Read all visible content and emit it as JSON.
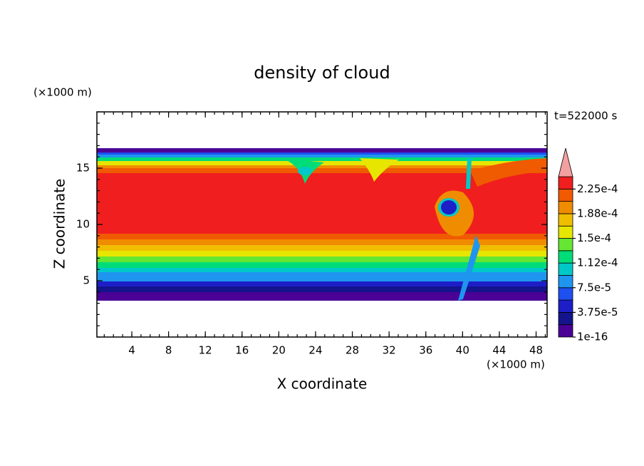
{
  "chart_data": {
    "type": "contour",
    "title": "density of cloud",
    "xlabel": "X coordinate",
    "ylabel": "Z coordinate",
    "x_unit": "(×1000 m)",
    "y_unit": "(×1000 m)",
    "annotation": "t=522000 s",
    "xlim": [
      0.2,
      49.2
    ],
    "ylim": [
      0,
      20
    ],
    "xticks": [
      4,
      8,
      12,
      16,
      20,
      24,
      28,
      32,
      36,
      40,
      44,
      48
    ],
    "yticks": [
      5,
      10,
      15
    ],
    "minor_step": 1,
    "colorbar": {
      "clim": [
        1e-16,
        0.00024375
      ],
      "ticks": [
        {
          "value": 1e-16,
          "label": "1e-16"
        },
        {
          "value": 3.75e-05,
          "label": "3.75e-5"
        },
        {
          "value": 7.5e-05,
          "label": "7.5e-5"
        },
        {
          "value": 0.0001125,
          "label": "1.12e-4"
        },
        {
          "value": 0.00015,
          "label": "1.5e-4"
        },
        {
          "value": 0.0001875,
          "label": "1.88e-4"
        },
        {
          "value": 0.000225,
          "label": "2.25e-4"
        }
      ],
      "colors": [
        "#4b0096",
        "#14148c",
        "#1e1ec8",
        "#1e50f0",
        "#1e96f0",
        "#00c8c8",
        "#00dc78",
        "#64e632",
        "#e6e600",
        "#f0be00",
        "#f08c00",
        "#f05a00",
        "#f01e1e"
      ],
      "extend_color": "#f4a0a0"
    }
  }
}
